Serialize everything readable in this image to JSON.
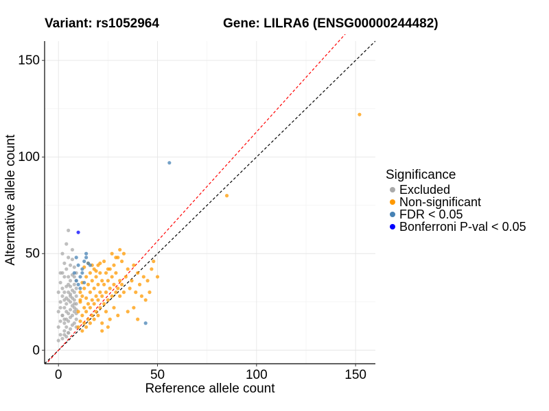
{
  "header": {
    "variant_title": "Variant: rs1052964",
    "gene_title": "Gene: LILRA6 (ENSG00000244482)"
  },
  "legend": {
    "title": "Significance",
    "items": [
      {
        "label": "Excluded",
        "color": "#aaaaaa"
      },
      {
        "label": "Non-significant",
        "color": "#ff9900"
      },
      {
        "label": "FDR < 0.05",
        "color": "#4682b4"
      },
      {
        "label": "Bonferroni P-val < 0.05",
        "color": "#0000ff"
      }
    ]
  },
  "chart_data": {
    "type": "scatter",
    "xlabel": "Reference allele count",
    "ylabel": "Alternative allele count",
    "xlim": [
      -7,
      160
    ],
    "ylim": [
      -7,
      160
    ],
    "xticks": [
      0,
      50,
      100,
      150
    ],
    "yticks": [
      0,
      50,
      100,
      150
    ],
    "grid": true,
    "legend_position": "right",
    "reference_lines": [
      {
        "type": "identity",
        "slope": 1,
        "intercept": 0,
        "color": "#000000",
        "style": "dashed"
      },
      {
        "type": "fitted",
        "slope": 1.13,
        "intercept": 0,
        "color": "#ff0000",
        "style": "dashed"
      }
    ],
    "series": [
      {
        "name": "Excluded",
        "color": "#aaaaaa",
        "x": [
          0,
          0,
          0,
          1,
          1,
          1,
          1,
          2,
          2,
          2,
          2,
          2,
          3,
          3,
          3,
          3,
          3,
          3,
          4,
          4,
          4,
          4,
          4,
          4,
          4,
          5,
          5,
          5,
          5,
          5,
          5,
          5,
          5,
          6,
          6,
          6,
          6,
          6,
          6,
          6,
          7,
          7,
          7,
          7,
          7,
          7,
          7,
          8,
          8,
          8,
          8,
          8,
          8,
          8,
          9,
          9,
          9,
          9,
          9,
          9,
          9,
          9,
          4,
          7,
          0,
          1,
          2,
          3,
          5,
          6,
          8,
          9,
          5,
          3,
          2,
          4,
          6,
          8,
          1,
          3
        ],
        "y": [
          5,
          12,
          20,
          8,
          15,
          25,
          35,
          6,
          18,
          28,
          40,
          50,
          10,
          22,
          30,
          45,
          8,
          14,
          12,
          24,
          33,
          42,
          16,
          7,
          20,
          15,
          26,
          38,
          48,
          9,
          19,
          30,
          62,
          11,
          21,
          29,
          36,
          44,
          17,
          25,
          13,
          23,
          31,
          39,
          47,
          18,
          27,
          14,
          22,
          30,
          34,
          43,
          20,
          26,
          16,
          24,
          32,
          36,
          40,
          12,
          19,
          28,
          55,
          52,
          30,
          22,
          18,
          26,
          34,
          28,
          38,
          21,
          9,
          38,
          32,
          27,
          33,
          24,
          40,
          16
        ]
      },
      {
        "name": "Non-significant",
        "color": "#ff9900",
        "x": [
          10,
          10,
          11,
          11,
          11,
          12,
          12,
          12,
          13,
          13,
          13,
          14,
          14,
          14,
          15,
          15,
          15,
          16,
          16,
          16,
          17,
          17,
          17,
          18,
          18,
          18,
          19,
          19,
          19,
          20,
          20,
          20,
          21,
          21,
          21,
          22,
          22,
          23,
          23,
          24,
          24,
          25,
          25,
          26,
          26,
          27,
          27,
          28,
          28,
          29,
          29,
          30,
          30,
          31,
          31,
          32,
          32,
          33,
          34,
          35,
          36,
          37,
          38,
          39,
          40,
          41,
          42,
          43,
          44,
          45,
          46,
          47,
          48,
          50,
          12,
          14,
          16,
          18,
          20,
          22,
          24,
          26,
          28,
          30,
          15,
          17,
          19,
          21,
          23,
          25,
          27,
          29,
          31,
          33,
          13,
          11,
          35,
          38,
          40,
          25,
          22,
          85,
          152
        ],
        "y": [
          12,
          20,
          15,
          25,
          30,
          18,
          28,
          35,
          14,
          22,
          32,
          20,
          27,
          38,
          16,
          24,
          34,
          22,
          30,
          40,
          18,
          26,
          36,
          24,
          32,
          42,
          20,
          28,
          38,
          26,
          34,
          44,
          22,
          30,
          40,
          28,
          36,
          24,
          34,
          30,
          40,
          26,
          36,
          32,
          42,
          28,
          38,
          34,
          44,
          30,
          40,
          32,
          48,
          28,
          36,
          34,
          46,
          30,
          38,
          42,
          32,
          36,
          44,
          30,
          40,
          34,
          28,
          38,
          26,
          36,
          30,
          42,
          46,
          38,
          10,
          12,
          14,
          16,
          18,
          14,
          20,
          16,
          22,
          18,
          45,
          44,
          41,
          45,
          46,
          42,
          50,
          48,
          52,
          50,
          43,
          26,
          20,
          22,
          16,
          12,
          10,
          80,
          122
        ]
      },
      {
        "name": "FDR < 0.05",
        "color": "#4682b4",
        "x": [
          8,
          9,
          10,
          11,
          12,
          13,
          14,
          15,
          10,
          12,
          14,
          11,
          13,
          9,
          16,
          44,
          56
        ],
        "y": [
          40,
          36,
          44,
          38,
          42,
          46,
          48,
          45,
          34,
          40,
          50,
          32,
          35,
          48,
          44,
          14,
          97
        ]
      },
      {
        "name": "Bonferroni P-val < 0.05",
        "color": "#0000ff",
        "x": [
          10
        ],
        "y": [
          61
        ]
      }
    ]
  }
}
